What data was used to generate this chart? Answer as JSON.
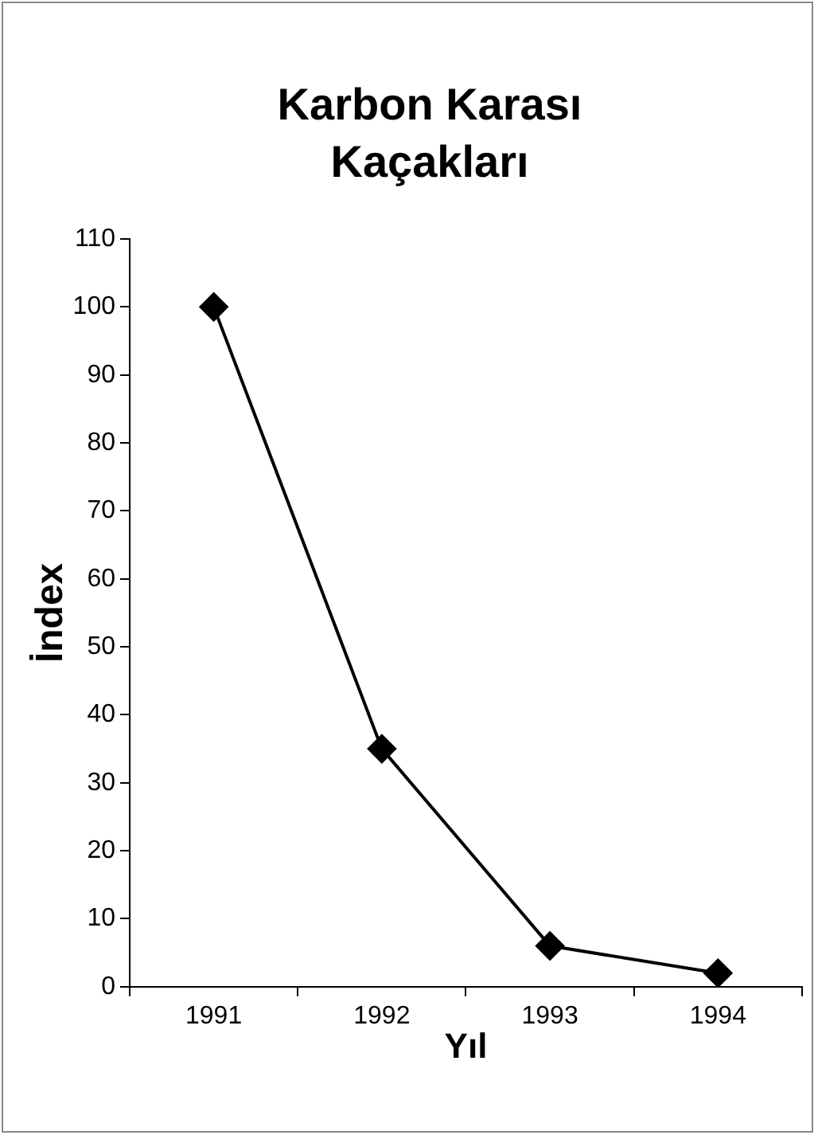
{
  "chart_data": {
    "type": "line",
    "title": "Karbon Karası Kaçakları",
    "xlabel": "Yıl",
    "ylabel": "İndex",
    "categories": [
      "1991",
      "1992",
      "1993",
      "1994"
    ],
    "series": [
      {
        "color": "#000000",
        "values": [
          100,
          35,
          6,
          2
        ]
      }
    ],
    "ylim": [
      0,
      110
    ],
    "yticks": [
      0,
      10,
      20,
      30,
      40,
      50,
      60,
      70,
      80,
      90,
      100,
      110
    ],
    "grid": false,
    "legend": false,
    "marker": "diamond",
    "line_style": "solid"
  }
}
